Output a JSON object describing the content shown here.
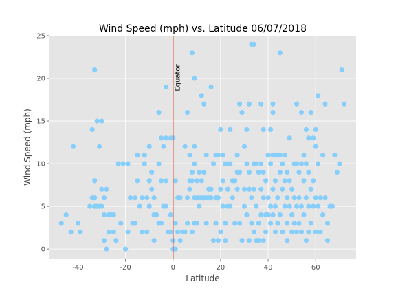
{
  "chart_data": {
    "type": "scatter",
    "title": "Wind Speed (mph) vs. Latitude 06/07/2018",
    "xlabel": "Latitude",
    "ylabel": "Wind Speed (mph)",
    "xlim": [
      -52,
      77
    ],
    "ylim": [
      -1.2,
      25
    ],
    "xticks": [
      -40,
      -20,
      0,
      20,
      40,
      60
    ],
    "yticks": [
      0,
      5,
      10,
      15,
      20,
      25
    ],
    "grid": true,
    "background_color": "#e5e5e5",
    "marker_color": "#87cefa",
    "reference_line": {
      "x": 0,
      "color": "#e2583e"
    },
    "annotation": {
      "text": "Equator",
      "x": 2,
      "y": 18.5
    },
    "points": [
      [
        -47,
        3
      ],
      [
        -45,
        4
      ],
      [
        -43,
        2
      ],
      [
        -42,
        12
      ],
      [
        -40,
        3
      ],
      [
        -39,
        2
      ],
      [
        -35,
        5
      ],
      [
        -34,
        14
      ],
      [
        -34,
        6
      ],
      [
        -33,
        21
      ],
      [
        -33,
        8
      ],
      [
        -33,
        6
      ],
      [
        -33,
        5
      ],
      [
        -32,
        15
      ],
      [
        -32,
        5
      ],
      [
        -31,
        12
      ],
      [
        -31,
        5
      ],
      [
        -30,
        15
      ],
      [
        -30,
        7
      ],
      [
        -30,
        5
      ],
      [
        -29,
        6
      ],
      [
        -29,
        4
      ],
      [
        -29,
        1
      ],
      [
        -28,
        7
      ],
      [
        -28,
        0
      ],
      [
        -27,
        4
      ],
      [
        -27,
        2
      ],
      [
        -26,
        4
      ],
      [
        -25,
        2
      ],
      [
        -25,
        4
      ],
      [
        -24,
        1
      ],
      [
        -23,
        10
      ],
      [
        -22,
        3
      ],
      [
        -21,
        10
      ],
      [
        -20,
        0
      ],
      [
        -19,
        10
      ],
      [
        -19,
        2
      ],
      [
        -18,
        6
      ],
      [
        -17,
        3
      ],
      [
        -16,
        6
      ],
      [
        -16,
        3
      ],
      [
        -15,
        11
      ],
      [
        -15,
        8
      ],
      [
        -14,
        5
      ],
      [
        -13,
        6
      ],
      [
        -13,
        2
      ],
      [
        -12,
        11
      ],
      [
        -12,
        10
      ],
      [
        -11,
        6
      ],
      [
        -11,
        2
      ],
      [
        -10,
        12
      ],
      [
        -10,
        8
      ],
      [
        -10,
        5
      ],
      [
        -9,
        9
      ],
      [
        -9,
        7
      ],
      [
        -8,
        6
      ],
      [
        -8,
        4
      ],
      [
        -8,
        1
      ],
      [
        -7,
        4
      ],
      [
        -6,
        16
      ],
      [
        -6,
        10
      ],
      [
        -6,
        3
      ],
      [
        -5,
        13
      ],
      [
        -5,
        8
      ],
      [
        -5,
        3
      ],
      [
        -4,
        12
      ],
      [
        -4,
        5
      ],
      [
        -3,
        19
      ],
      [
        -3,
        13
      ],
      [
        -3,
        8
      ],
      [
        -3,
        5
      ],
      [
        -2,
        2
      ],
      [
        -1,
        13
      ],
      [
        -1,
        4
      ],
      [
        -1,
        2
      ],
      [
        0,
        13
      ],
      [
        0,
        0
      ],
      [
        0,
        1
      ],
      [
        1,
        8
      ],
      [
        1,
        3
      ],
      [
        1,
        0
      ],
      [
        2,
        6
      ],
      [
        2,
        2
      ],
      [
        3,
        6
      ],
      [
        3,
        1
      ],
      [
        4,
        2
      ],
      [
        5,
        12
      ],
      [
        5,
        2
      ],
      [
        6,
        16
      ],
      [
        6,
        3
      ],
      [
        6,
        6
      ],
      [
        7,
        11
      ],
      [
        7,
        8
      ],
      [
        7,
        7
      ],
      [
        8,
        23
      ],
      [
        8,
        9
      ],
      [
        8,
        8
      ],
      [
        8,
        2
      ],
      [
        9,
        20
      ],
      [
        9,
        12
      ],
      [
        9,
        10
      ],
      [
        9,
        6
      ],
      [
        9,
        3
      ],
      [
        10,
        8
      ],
      [
        10,
        6
      ],
      [
        10,
        3
      ],
      [
        11,
        9
      ],
      [
        11,
        6
      ],
      [
        11,
        5
      ],
      [
        12,
        18
      ],
      [
        12,
        8
      ],
      [
        12,
        6
      ],
      [
        13,
        17
      ],
      [
        13,
        9
      ],
      [
        13,
        6
      ],
      [
        14,
        11
      ],
      [
        14,
        6
      ],
      [
        14,
        3
      ],
      [
        15,
        7
      ],
      [
        15,
        6
      ],
      [
        16,
        19
      ],
      [
        16,
        7
      ],
      [
        16,
        6
      ],
      [
        17,
        10
      ],
      [
        17,
        1
      ],
      [
        18,
        11
      ],
      [
        18,
        6
      ],
      [
        18,
        3
      ],
      [
        19,
        11
      ],
      [
        19,
        6
      ],
      [
        19,
        1
      ],
      [
        20,
        14
      ],
      [
        20,
        7
      ],
      [
        20,
        2
      ],
      [
        21,
        11
      ],
      [
        21,
        8
      ],
      [
        21,
        5
      ],
      [
        22,
        10
      ],
      [
        22,
        3
      ],
      [
        22,
        1
      ],
      [
        23,
        10
      ],
      [
        23,
        7
      ],
      [
        23,
        5
      ],
      [
        24,
        14
      ],
      [
        24,
        10
      ],
      [
        24,
        5
      ],
      [
        25,
        8
      ],
      [
        25,
        6
      ],
      [
        26,
        8
      ],
      [
        26,
        3
      ],
      [
        27,
        11
      ],
      [
        27,
        9
      ],
      [
        27,
        7
      ],
      [
        28,
        17
      ],
      [
        28,
        9
      ],
      [
        28,
        3
      ],
      [
        29,
        16
      ],
      [
        29,
        1
      ],
      [
        30,
        12
      ],
      [
        30,
        7
      ],
      [
        30,
        5
      ],
      [
        31,
        14
      ],
      [
        31,
        10
      ],
      [
        31,
        4
      ],
      [
        32,
        17
      ],
      [
        32,
        9
      ],
      [
        32,
        7
      ],
      [
        32,
        1
      ],
      [
        33,
        24
      ],
      [
        33,
        6
      ],
      [
        33,
        3
      ],
      [
        34,
        24
      ],
      [
        34,
        10
      ],
      [
        34,
        7
      ],
      [
        34,
        2
      ],
      [
        35,
        10
      ],
      [
        35,
        5
      ],
      [
        35,
        1
      ],
      [
        36,
        9
      ],
      [
        36,
        3
      ],
      [
        36,
        1
      ],
      [
        37,
        17
      ],
      [
        37,
        10
      ],
      [
        37,
        7
      ],
      [
        37,
        4
      ],
      [
        38,
        14
      ],
      [
        38,
        9
      ],
      [
        38,
        6
      ],
      [
        38,
        1
      ],
      [
        39,
        8
      ],
      [
        39,
        4
      ],
      [
        39,
        2
      ],
      [
        40,
        11
      ],
      [
        40,
        6
      ],
      [
        40,
        4
      ],
      [
        41,
        14
      ],
      [
        41,
        10
      ],
      [
        41,
        5
      ],
      [
        41,
        3
      ],
      [
        42,
        17
      ],
      [
        42,
        16
      ],
      [
        42,
        11
      ],
      [
        42,
        7
      ],
      [
        42,
        4
      ],
      [
        43,
        11
      ],
      [
        43,
        8
      ],
      [
        43,
        5
      ],
      [
        43,
        2
      ],
      [
        44,
        11
      ],
      [
        44,
        6
      ],
      [
        44,
        3
      ],
      [
        45,
        23
      ],
      [
        45,
        11
      ],
      [
        45,
        9
      ],
      [
        45,
        4
      ],
      [
        46,
        10
      ],
      [
        46,
        7
      ],
      [
        46,
        2
      ],
      [
        47,
        11
      ],
      [
        47,
        8
      ],
      [
        47,
        5
      ],
      [
        48,
        9
      ],
      [
        48,
        6
      ],
      [
        48,
        3
      ],
      [
        48,
        1
      ],
      [
        49,
        13
      ],
      [
        49,
        8
      ],
      [
        49,
        5
      ],
      [
        50,
        7
      ],
      [
        50,
        4
      ],
      [
        50,
        2
      ],
      [
        51,
        10
      ],
      [
        51,
        6
      ],
      [
        51,
        3
      ],
      [
        52,
        17
      ],
      [
        52,
        10
      ],
      [
        52,
        5
      ],
      [
        52,
        2
      ],
      [
        53,
        9
      ],
      [
        53,
        6
      ],
      [
        53,
        3
      ],
      [
        54,
        16
      ],
      [
        54,
        10
      ],
      [
        54,
        5
      ],
      [
        54,
        2
      ],
      [
        55,
        11
      ],
      [
        55,
        8
      ],
      [
        55,
        4
      ],
      [
        56,
        14
      ],
      [
        56,
        10
      ],
      [
        56,
        6
      ],
      [
        56,
        1
      ],
      [
        57,
        13
      ],
      [
        57,
        9
      ],
      [
        57,
        5
      ],
      [
        57,
        2
      ],
      [
        58,
        16
      ],
      [
        58,
        7
      ],
      [
        58,
        3
      ],
      [
        59,
        13
      ],
      [
        59,
        8
      ],
      [
        59,
        5
      ],
      [
        60,
        14
      ],
      [
        60,
        12
      ],
      [
        60,
        6
      ],
      [
        60,
        2
      ],
      [
        61,
        18
      ],
      [
        61,
        10
      ],
      [
        61,
        5
      ],
      [
        62,
        6
      ],
      [
        62,
        2
      ],
      [
        63,
        11
      ],
      [
        63,
        4
      ],
      [
        64,
        17
      ],
      [
        64,
        6
      ],
      [
        65,
        3
      ],
      [
        65,
        1
      ],
      [
        66,
        5
      ],
      [
        67,
        5
      ],
      [
        68,
        11
      ],
      [
        69,
        9
      ],
      [
        70,
        10
      ],
      [
        71,
        21
      ],
      [
        72,
        17
      ]
    ]
  }
}
